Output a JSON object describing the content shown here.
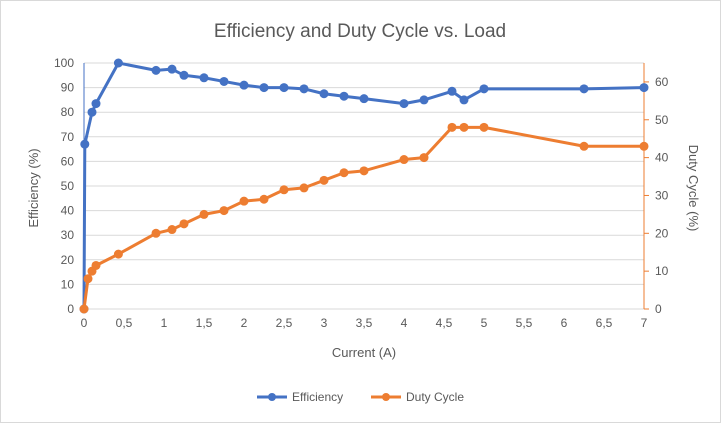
{
  "chart_data": {
    "type": "line",
    "title": "Efficiency and Duty Cycle vs. Load",
    "xlabel": "Current (A)",
    "ylabel": "Efficiency (%)",
    "y2label": "Duty Cycle (%)",
    "xlim": [
      0,
      7
    ],
    "ylim": [
      0,
      100
    ],
    "y2lim": [
      0,
      65
    ],
    "x_ticks": [
      "0",
      "0,5",
      "1",
      "1,5",
      "2",
      "2,5",
      "3",
      "3,5",
      "4",
      "4,5",
      "5",
      "5,5",
      "6",
      "6,5",
      "7"
    ],
    "y_ticks": [
      "0",
      "10",
      "20",
      "30",
      "40",
      "50",
      "60",
      "70",
      "80",
      "90",
      "100"
    ],
    "y2_ticks": [
      "0",
      "10",
      "20",
      "30",
      "40",
      "50",
      "60"
    ],
    "grid": "horizontal",
    "legend_position": "bottom",
    "series": [
      {
        "name": "Efficiency",
        "axis": "left",
        "color": "#4472c4",
        "points": [
          [
            0,
            0
          ],
          [
            0.01,
            67
          ],
          [
            0.1,
            80
          ],
          [
            0.15,
            83.5
          ],
          [
            0.43,
            100
          ],
          [
            0.9,
            97
          ],
          [
            1.1,
            97.5
          ],
          [
            1.25,
            95
          ],
          [
            1.5,
            94
          ],
          [
            1.75,
            92.5
          ],
          [
            2.0,
            91
          ],
          [
            2.25,
            90
          ],
          [
            2.5,
            90
          ],
          [
            2.75,
            89.5
          ],
          [
            3.0,
            87.5
          ],
          [
            3.25,
            86.5
          ],
          [
            3.5,
            85.5
          ],
          [
            4.0,
            83.5
          ],
          [
            4.25,
            85
          ],
          [
            4.6,
            88.5
          ],
          [
            4.75,
            85
          ],
          [
            5.0,
            89.5
          ],
          [
            6.25,
            89.5
          ],
          [
            7.0,
            90
          ]
        ]
      },
      {
        "name": "Duty Cycle",
        "axis": "right",
        "color": "#ed7d31",
        "points": [
          [
            0,
            0
          ],
          [
            0.05,
            8
          ],
          [
            0.1,
            10
          ],
          [
            0.15,
            11.5
          ],
          [
            0.43,
            14.5
          ],
          [
            0.9,
            20
          ],
          [
            1.1,
            21
          ],
          [
            1.25,
            22.5
          ],
          [
            1.5,
            25
          ],
          [
            1.75,
            26
          ],
          [
            2.0,
            28.5
          ],
          [
            2.25,
            29
          ],
          [
            2.5,
            31.5
          ],
          [
            2.75,
            32
          ],
          [
            3.0,
            34
          ],
          [
            3.25,
            36
          ],
          [
            3.5,
            36.5
          ],
          [
            4.0,
            39.5
          ],
          [
            4.25,
            40
          ],
          [
            4.6,
            48
          ],
          [
            4.75,
            48
          ],
          [
            5.0,
            48
          ],
          [
            6.25,
            43
          ],
          [
            7.0,
            43
          ]
        ]
      }
    ]
  }
}
